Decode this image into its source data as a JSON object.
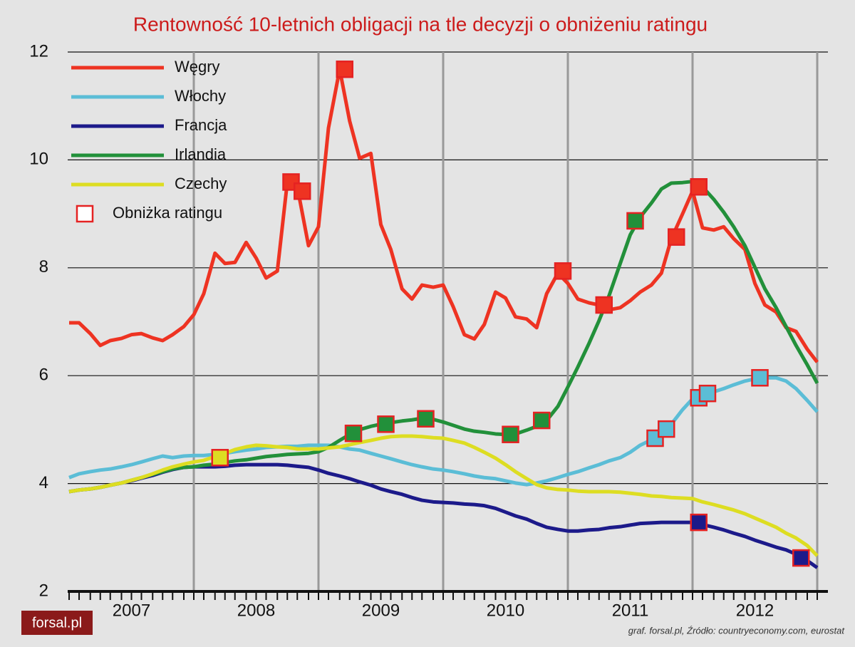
{
  "chart_data": {
    "type": "line",
    "title": "Rentowność 10-letnich obligacji na tle decyzji o obniżeniu ratingu",
    "x": [
      2007,
      2007.08,
      2007.17,
      2007.25,
      2007.33,
      2007.42,
      2007.5,
      2007.58,
      2007.67,
      2007.75,
      2007.83,
      2007.92,
      2008,
      2008.08,
      2008.17,
      2008.25,
      2008.33,
      2008.42,
      2008.5,
      2008.58,
      2008.67,
      2008.75,
      2008.83,
      2008.92,
      2009,
      2009.08,
      2009.17,
      2009.25,
      2009.33,
      2009.42,
      2009.5,
      2009.58,
      2009.67,
      2009.75,
      2009.83,
      2009.92,
      2010,
      2010.08,
      2010.17,
      2010.25,
      2010.33,
      2010.42,
      2010.5,
      2010.58,
      2010.67,
      2010.75,
      2010.83,
      2010.92,
      2011,
      2011.08,
      2011.17,
      2011.25,
      2011.33,
      2011.42,
      2011.5,
      2011.58,
      2011.67,
      2011.75,
      2011.83,
      2011.92,
      2012,
      2012.08,
      2012.17,
      2012.25,
      2012.33,
      2012.42,
      2012.5,
      2012.58,
      2012.67,
      2012.75,
      2012.83,
      2012.92,
      2013
    ],
    "series": [
      {
        "name": "Węgry",
        "color": "#ee3322",
        "values": [
          6.98,
          6.98,
          6.78,
          6.56,
          6.65,
          6.69,
          6.76,
          6.78,
          6.7,
          6.65,
          6.76,
          6.91,
          7.13,
          7.52,
          8.27,
          8.08,
          8.1,
          8.47,
          8.18,
          7.81,
          7.94,
          9.59,
          9.5,
          8.41,
          8.76,
          10.59,
          11.68,
          10.72,
          10.03,
          10.12,
          8.8,
          8.34,
          7.61,
          7.42,
          7.68,
          7.64,
          7.68,
          7.28,
          6.76,
          6.68,
          6.95,
          7.55,
          7.44,
          7.09,
          7.05,
          6.89,
          7.52,
          7.9,
          7.71,
          7.42,
          7.35,
          7.31,
          7.22,
          7.26,
          7.39,
          7.55,
          7.68,
          7.9,
          8.54,
          9.0,
          9.42,
          8.74,
          8.7,
          8.76,
          8.54,
          8.34,
          7.71,
          7.31,
          7.18,
          6.89,
          6.82,
          6.49,
          6.25
        ],
        "rating_cuts": [
          {
            "x": 2008.78,
            "y": 9.59
          },
          {
            "x": 2008.87,
            "y": 9.42
          },
          {
            "x": 2009.21,
            "y": 11.68
          },
          {
            "x": 2010.96,
            "y": 7.94
          },
          {
            "x": 2011.29,
            "y": 7.31
          },
          {
            "x": 2011.87,
            "y": 8.57
          },
          {
            "x": 2012.05,
            "y": 9.5
          }
        ]
      },
      {
        "name": "Włochy",
        "color": "#5bbdd6",
        "values": [
          4.11,
          4.18,
          4.22,
          4.25,
          4.27,
          4.31,
          4.35,
          4.4,
          4.46,
          4.51,
          4.48,
          4.51,
          4.52,
          4.52,
          4.54,
          4.56,
          4.59,
          4.62,
          4.64,
          4.67,
          4.68,
          4.69,
          4.69,
          4.71,
          4.71,
          4.71,
          4.68,
          4.64,
          4.62,
          4.56,
          4.51,
          4.46,
          4.4,
          4.35,
          4.31,
          4.27,
          4.25,
          4.22,
          4.18,
          4.14,
          4.11,
          4.09,
          4.05,
          4.01,
          3.98,
          4.01,
          4.05,
          4.11,
          4.17,
          4.22,
          4.29,
          4.35,
          4.42,
          4.48,
          4.58,
          4.71,
          4.81,
          4.93,
          5.1,
          5.37,
          5.57,
          5.65,
          5.7,
          5.76,
          5.83,
          5.9,
          5.94,
          5.96,
          5.96,
          5.9,
          5.76,
          5.54,
          5.33
        ],
        "rating_cuts": [
          {
            "x": 2011.7,
            "y": 4.84
          },
          {
            "x": 2011.79,
            "y": 5.01
          },
          {
            "x": 2012.05,
            "y": 5.59
          },
          {
            "x": 2012.12,
            "y": 5.67
          },
          {
            "x": 2012.54,
            "y": 5.96
          }
        ]
      },
      {
        "name": "Francja",
        "color": "#1c1a8a",
        "values": [
          3.85,
          3.88,
          3.9,
          3.93,
          3.97,
          4.01,
          4.05,
          4.1,
          4.15,
          4.21,
          4.26,
          4.3,
          4.31,
          4.31,
          4.31,
          4.32,
          4.34,
          4.35,
          4.35,
          4.35,
          4.35,
          4.34,
          4.32,
          4.3,
          4.25,
          4.19,
          4.14,
          4.09,
          4.03,
          3.97,
          3.9,
          3.85,
          3.8,
          3.74,
          3.69,
          3.66,
          3.65,
          3.64,
          3.62,
          3.61,
          3.59,
          3.54,
          3.47,
          3.4,
          3.34,
          3.26,
          3.19,
          3.15,
          3.12,
          3.12,
          3.14,
          3.15,
          3.18,
          3.2,
          3.23,
          3.26,
          3.27,
          3.28,
          3.28,
          3.28,
          3.28,
          3.24,
          3.19,
          3.14,
          3.08,
          3.02,
          2.95,
          2.89,
          2.82,
          2.77,
          2.69,
          2.57,
          2.44
        ],
        "rating_cuts": [
          {
            "x": 2012.05,
            "y": 3.28
          },
          {
            "x": 2012.87,
            "y": 2.62
          }
        ]
      },
      {
        "name": "Irlandia",
        "color": "#22903a",
        "values": [
          3.85,
          3.88,
          3.9,
          3.93,
          3.97,
          4.01,
          4.06,
          4.11,
          4.17,
          4.22,
          4.27,
          4.3,
          4.31,
          4.34,
          4.36,
          4.39,
          4.42,
          4.44,
          4.47,
          4.5,
          4.52,
          4.54,
          4.55,
          4.56,
          4.59,
          4.67,
          4.8,
          4.91,
          5.0,
          5.06,
          5.1,
          5.13,
          5.16,
          5.18,
          5.21,
          5.19,
          5.14,
          5.08,
          5.01,
          4.97,
          4.95,
          4.92,
          4.91,
          4.92,
          4.99,
          5.06,
          5.17,
          5.43,
          5.79,
          6.16,
          6.6,
          7.02,
          7.48,
          8.08,
          8.61,
          8.94,
          9.2,
          9.46,
          9.57,
          9.58,
          9.6,
          9.5,
          9.27,
          9.03,
          8.76,
          8.41,
          8.01,
          7.61,
          7.26,
          6.91,
          6.56,
          6.2,
          5.86
        ],
        "rating_cuts": [
          {
            "x": 2009.28,
            "y": 4.93
          },
          {
            "x": 2009.54,
            "y": 5.1
          },
          {
            "x": 2009.86,
            "y": 5.2
          },
          {
            "x": 2010.54,
            "y": 4.91
          },
          {
            "x": 2010.79,
            "y": 5.17
          },
          {
            "x": 2011.54,
            "y": 8.87
          }
        ]
      },
      {
        "name": "Czechy",
        "color": "#dddd22",
        "values": [
          3.85,
          3.88,
          3.9,
          3.93,
          3.97,
          4.01,
          4.06,
          4.11,
          4.18,
          4.25,
          4.31,
          4.36,
          4.4,
          4.43,
          4.5,
          4.56,
          4.63,
          4.68,
          4.71,
          4.7,
          4.68,
          4.67,
          4.64,
          4.64,
          4.64,
          4.66,
          4.68,
          4.72,
          4.76,
          4.8,
          4.84,
          4.87,
          4.88,
          4.88,
          4.87,
          4.85,
          4.84,
          4.8,
          4.75,
          4.67,
          4.58,
          4.47,
          4.35,
          4.22,
          4.09,
          3.98,
          3.92,
          3.89,
          3.88,
          3.86,
          3.85,
          3.85,
          3.85,
          3.84,
          3.82,
          3.8,
          3.77,
          3.76,
          3.74,
          3.73,
          3.72,
          3.66,
          3.61,
          3.56,
          3.51,
          3.44,
          3.36,
          3.28,
          3.19,
          3.08,
          2.99,
          2.85,
          2.66
        ],
        "rating_cuts": [
          {
            "x": 2008.21,
            "y": 4.48
          }
        ]
      }
    ],
    "marker_label": "Obniżka ratingu",
    "xlim": [
      2007,
      2013.05
    ],
    "xticks": [
      2008,
      2009,
      2010,
      2011,
      2012,
      2013
    ],
    "xlabels": [
      {
        "value": 2007.5,
        "label": "2007"
      },
      {
        "value": 2008.5,
        "label": "2008"
      },
      {
        "value": 2009.5,
        "label": "2009"
      },
      {
        "value": 2010.5,
        "label": "2010"
      },
      {
        "value": 2011.5,
        "label": "2011"
      },
      {
        "value": 2012.5,
        "label": "2012"
      }
    ],
    "ylim": [
      2,
      12
    ],
    "yticks": [
      2,
      4,
      6,
      8,
      10,
      12
    ],
    "grid": true,
    "legend": "upper left",
    "logo": "forsal.pl",
    "source": "graf. forsal.pl,  Źródło: countryeconomy.com, eurostat"
  }
}
